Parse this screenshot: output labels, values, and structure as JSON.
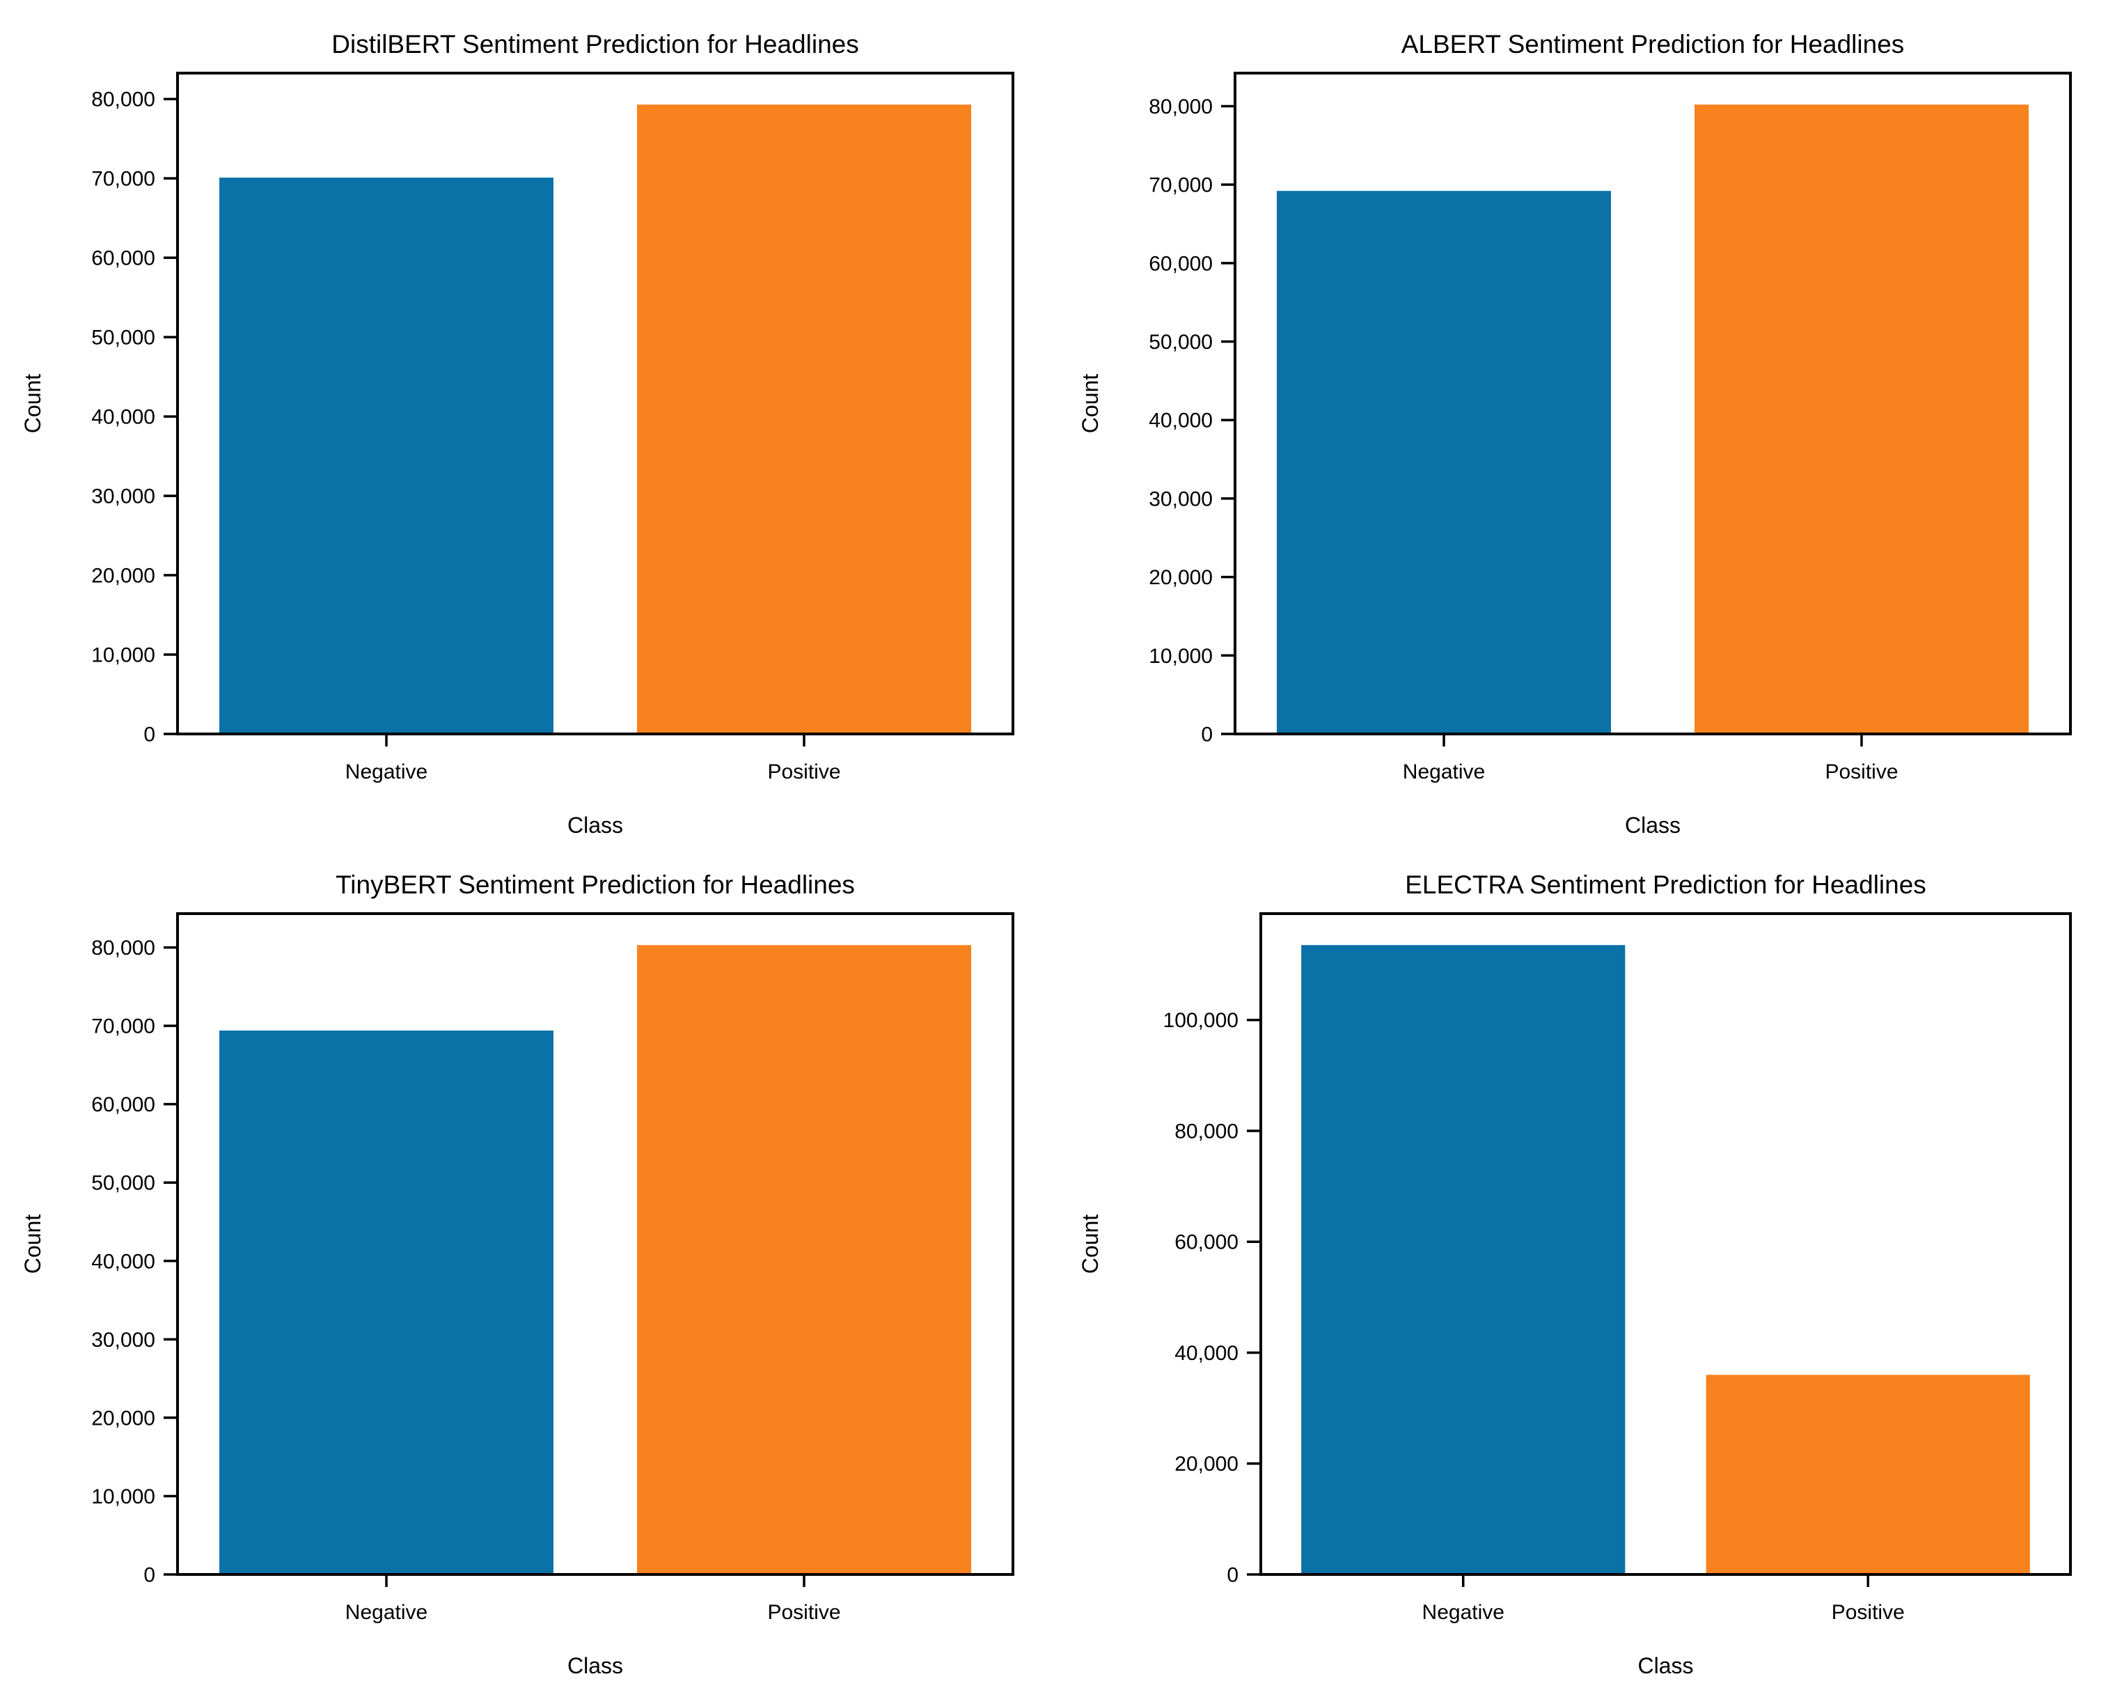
{
  "colors": {
    "negative_bar": "#0A72A6",
    "positive_bar": "#F8821E",
    "axis": "#000000",
    "text": "#000000",
    "background": "#FFFFFF"
  },
  "chart_data": [
    {
      "type": "bar",
      "title": "DistilBERT Sentiment Prediction for Headlines",
      "xlabel": "Class",
      "ylabel": "Count",
      "categories": [
        "Negative",
        "Positive"
      ],
      "values": [
        70100,
        79300
      ],
      "bar_colors": [
        "#0A72A6",
        "#F8821E"
      ],
      "ylim": [
        0,
        83265
      ],
      "grid": false,
      "legend": null,
      "yticks": [
        {
          "v": 0,
          "label": "0"
        },
        {
          "v": 10000,
          "label": "10,000"
        },
        {
          "v": 20000,
          "label": "20,000"
        },
        {
          "v": 30000,
          "label": "30,000"
        },
        {
          "v": 40000,
          "label": "40,000"
        },
        {
          "v": 50000,
          "label": "50,000"
        },
        {
          "v": 60000,
          "label": "60,000"
        },
        {
          "v": 70000,
          "label": "70,000"
        },
        {
          "v": 80000,
          "label": "80,000"
        }
      ]
    },
    {
      "type": "bar",
      "title": "ALBERT Sentiment Prediction for Headlines",
      "xlabel": "Class",
      "ylabel": "Count",
      "categories": [
        "Negative",
        "Positive"
      ],
      "values": [
        69200,
        80200
      ],
      "bar_colors": [
        "#0A72A6",
        "#F8821E"
      ],
      "ylim": [
        0,
        84210
      ],
      "grid": false,
      "legend": null,
      "yticks": [
        {
          "v": 0,
          "label": "0"
        },
        {
          "v": 10000,
          "label": "10,000"
        },
        {
          "v": 20000,
          "label": "20,000"
        },
        {
          "v": 30000,
          "label": "30,000"
        },
        {
          "v": 40000,
          "label": "40,000"
        },
        {
          "v": 50000,
          "label": "50,000"
        },
        {
          "v": 60000,
          "label": "60,000"
        },
        {
          "v": 70000,
          "label": "70,000"
        },
        {
          "v": 80000,
          "label": "80,000"
        }
      ]
    },
    {
      "type": "bar",
      "title": "TinyBERT Sentiment Prediction for Headlines",
      "xlabel": "Class",
      "ylabel": "Count",
      "categories": [
        "Negative",
        "Positive"
      ],
      "values": [
        69400,
        80300
      ],
      "bar_colors": [
        "#0A72A6",
        "#F8821E"
      ],
      "ylim": [
        0,
        84315
      ],
      "grid": false,
      "legend": null,
      "yticks": [
        {
          "v": 0,
          "label": "0"
        },
        {
          "v": 10000,
          "label": "10,000"
        },
        {
          "v": 20000,
          "label": "20,000"
        },
        {
          "v": 30000,
          "label": "30,000"
        },
        {
          "v": 40000,
          "label": "40,000"
        },
        {
          "v": 50000,
          "label": "50,000"
        },
        {
          "v": 60000,
          "label": "60,000"
        },
        {
          "v": 70000,
          "label": "70,000"
        },
        {
          "v": 80000,
          "label": "80,000"
        }
      ]
    },
    {
      "type": "bar",
      "title": "ELECTRA Sentiment Prediction for Headlines",
      "xlabel": "Class",
      "ylabel": "Count",
      "categories": [
        "Negative",
        "Positive"
      ],
      "values": [
        113500,
        36000
      ],
      "bar_colors": [
        "#0A72A6",
        "#F8821E"
      ],
      "ylim": [
        0,
        119175
      ],
      "grid": false,
      "legend": null,
      "yticks": [
        {
          "v": 0,
          "label": "0"
        },
        {
          "v": 20000,
          "label": "20,000"
        },
        {
          "v": 40000,
          "label": "40,000"
        },
        {
          "v": 60000,
          "label": "60,000"
        },
        {
          "v": 80000,
          "label": "80,000"
        },
        {
          "v": 100000,
          "label": "100,000"
        }
      ]
    }
  ]
}
